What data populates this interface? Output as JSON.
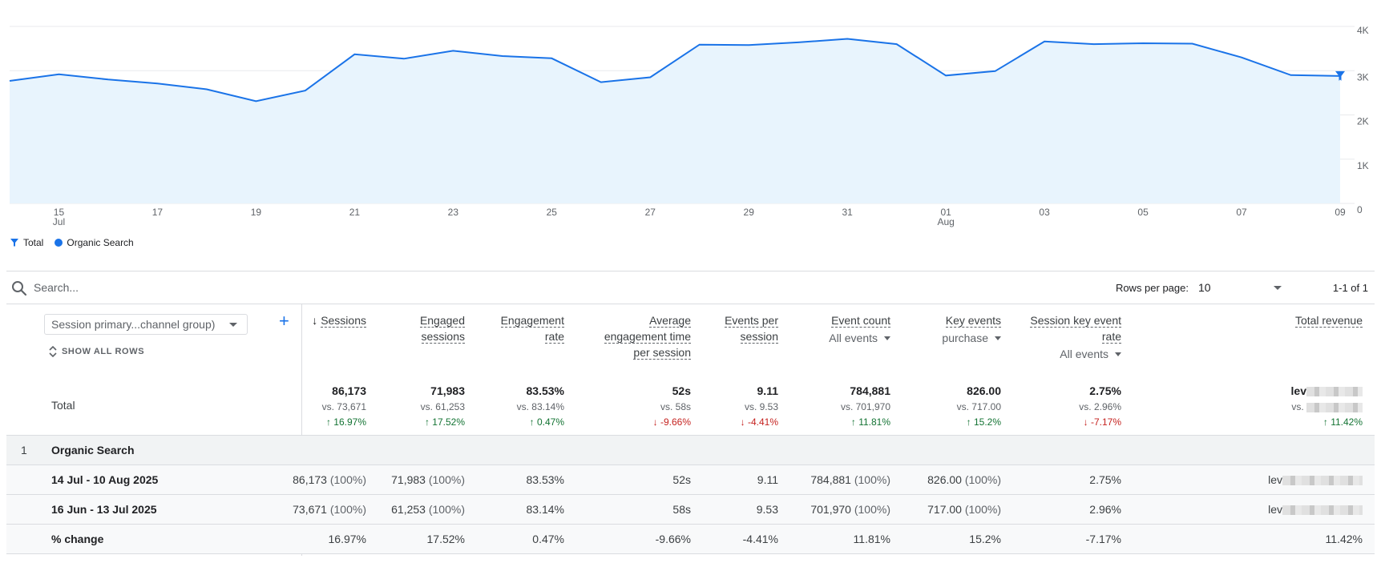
{
  "chart_data": {
    "type": "area",
    "x_ticks": [
      {
        "label": "15",
        "sub": "Jul"
      },
      {
        "label": "17",
        "sub": ""
      },
      {
        "label": "19",
        "sub": ""
      },
      {
        "label": "21",
        "sub": ""
      },
      {
        "label": "23",
        "sub": ""
      },
      {
        "label": "25",
        "sub": ""
      },
      {
        "label": "27",
        "sub": ""
      },
      {
        "label": "29",
        "sub": ""
      },
      {
        "label": "31",
        "sub": ""
      },
      {
        "label": "01",
        "sub": "Aug"
      },
      {
        "label": "03",
        "sub": ""
      },
      {
        "label": "05",
        "sub": ""
      },
      {
        "label": "07",
        "sub": ""
      },
      {
        "label": "09",
        "sub": ""
      }
    ],
    "y_ticks": [
      "4K",
      "3K",
      "2K",
      "1K",
      "0"
    ],
    "ylim": [
      0,
      4000
    ],
    "series": [
      {
        "name": "Organic Search",
        "x": [
          "2025-07-14",
          "2025-07-15",
          "2025-07-16",
          "2025-07-17",
          "2025-07-18",
          "2025-07-19",
          "2025-07-20",
          "2025-07-21",
          "2025-07-22",
          "2025-07-23",
          "2025-07-24",
          "2025-07-25",
          "2025-07-26",
          "2025-07-27",
          "2025-07-28",
          "2025-07-29",
          "2025-07-30",
          "2025-07-31",
          "2025-08-01",
          "2025-08-02",
          "2025-08-03",
          "2025-08-04",
          "2025-08-05",
          "2025-08-06",
          "2025-08-07",
          "2025-08-08",
          "2025-08-09",
          "2025-08-10"
        ],
        "values": [
          2770,
          2920,
          2800,
          2710,
          2580,
          2310,
          2550,
          3370,
          3270,
          3450,
          3330,
          3280,
          2740,
          2850,
          3590,
          3580,
          3640,
          3720,
          3600,
          2890,
          2990,
          3660,
          3600,
          3620,
          3610,
          3300,
          2900,
          2880
        ]
      }
    ],
    "legend": [
      "Total",
      "Organic Search"
    ]
  },
  "legend": {
    "total": "Total",
    "organic": "Organic Search"
  },
  "search": {
    "placeholder": "Search..."
  },
  "pagination": {
    "rows_per_page_label": "Rows per page:",
    "rows_per_page": "10",
    "range": "1-1 of 1"
  },
  "dimension": {
    "selector": "Session primary...channel group)",
    "add": "+",
    "show_all": "SHOW ALL ROWS",
    "total_label": "Total"
  },
  "columns": [
    {
      "h1": "Sessions",
      "h2": "",
      "h3": "",
      "sub": "",
      "sorted": true,
      "total": "86,173",
      "vs": "vs. 73,671",
      "change": "16.97%",
      "dir": "up"
    },
    {
      "h1": "Engaged",
      "h2": "sessions",
      "h3": "",
      "sub": "",
      "total": "71,983",
      "vs": "vs. 61,253",
      "change": "17.52%",
      "dir": "up"
    },
    {
      "h1": "Engagement",
      "h2": "rate",
      "h3": "",
      "sub": "",
      "total": "83.53%",
      "vs": "vs. 83.14%",
      "change": "0.47%",
      "dir": "up"
    },
    {
      "h1": "Average",
      "h2": "engagement time",
      "h3": "per session",
      "sub": "",
      "total": "52s",
      "vs": "vs. 58s",
      "change": "-9.66%",
      "dir": "down"
    },
    {
      "h1": "Events per",
      "h2": "session",
      "h3": "",
      "sub": "",
      "total": "9.11",
      "vs": "vs. 9.53",
      "change": "-4.41%",
      "dir": "down"
    },
    {
      "h1": "Event count",
      "h2": "",
      "h3": "",
      "sub": "All events",
      "total": "784,881",
      "vs": "vs. 701,970",
      "change": "11.81%",
      "dir": "up"
    },
    {
      "h1": "Key events",
      "h2": "",
      "h3": "",
      "sub": "purchase",
      "total": "826.00",
      "vs": "vs. 717.00",
      "change": "15.2%",
      "dir": "up"
    },
    {
      "h1": "Session key event",
      "h2": "rate",
      "h3": "",
      "sub": "All events",
      "total": "2.75%",
      "vs": "vs. 2.96%",
      "change": "-7.17%",
      "dir": "down"
    },
    {
      "h1": "Total revenue",
      "h2": "",
      "h3": "",
      "sub": "",
      "total": "lev",
      "vs": "vs.",
      "change": "11.42%",
      "dir": "up"
    }
  ],
  "rows": {
    "group": {
      "index": "1",
      "label": "Organic Search"
    },
    "period1": {
      "label": "14 Jul - 10 Aug 2025",
      "cells": [
        "86,173",
        "(100%)",
        "71,983",
        "(100%)",
        "83.53%",
        "52s",
        "9.11",
        "784,881",
        "(100%)",
        "826.00",
        "(100%)",
        "2.75%",
        "lev"
      ]
    },
    "period2": {
      "label": "16 Jun - 13 Jul 2025",
      "cells": [
        "73,671",
        "(100%)",
        "61,253",
        "(100%)",
        "83.14%",
        "58s",
        "9.53",
        "701,970",
        "(100%)",
        "717.00",
        "(100%)",
        "2.96%",
        "lev"
      ]
    },
    "change": {
      "label": "% change",
      "cells": [
        "16.97%",
        "17.52%",
        "0.47%",
        "-9.66%",
        "-4.41%",
        "11.81%",
        "15.2%",
        "-7.17%",
        "11.42%"
      ]
    }
  },
  "colors": {
    "line": "#1a73e8",
    "area": "#e8f4fd",
    "up": "#137333",
    "down": "#c5221f"
  }
}
